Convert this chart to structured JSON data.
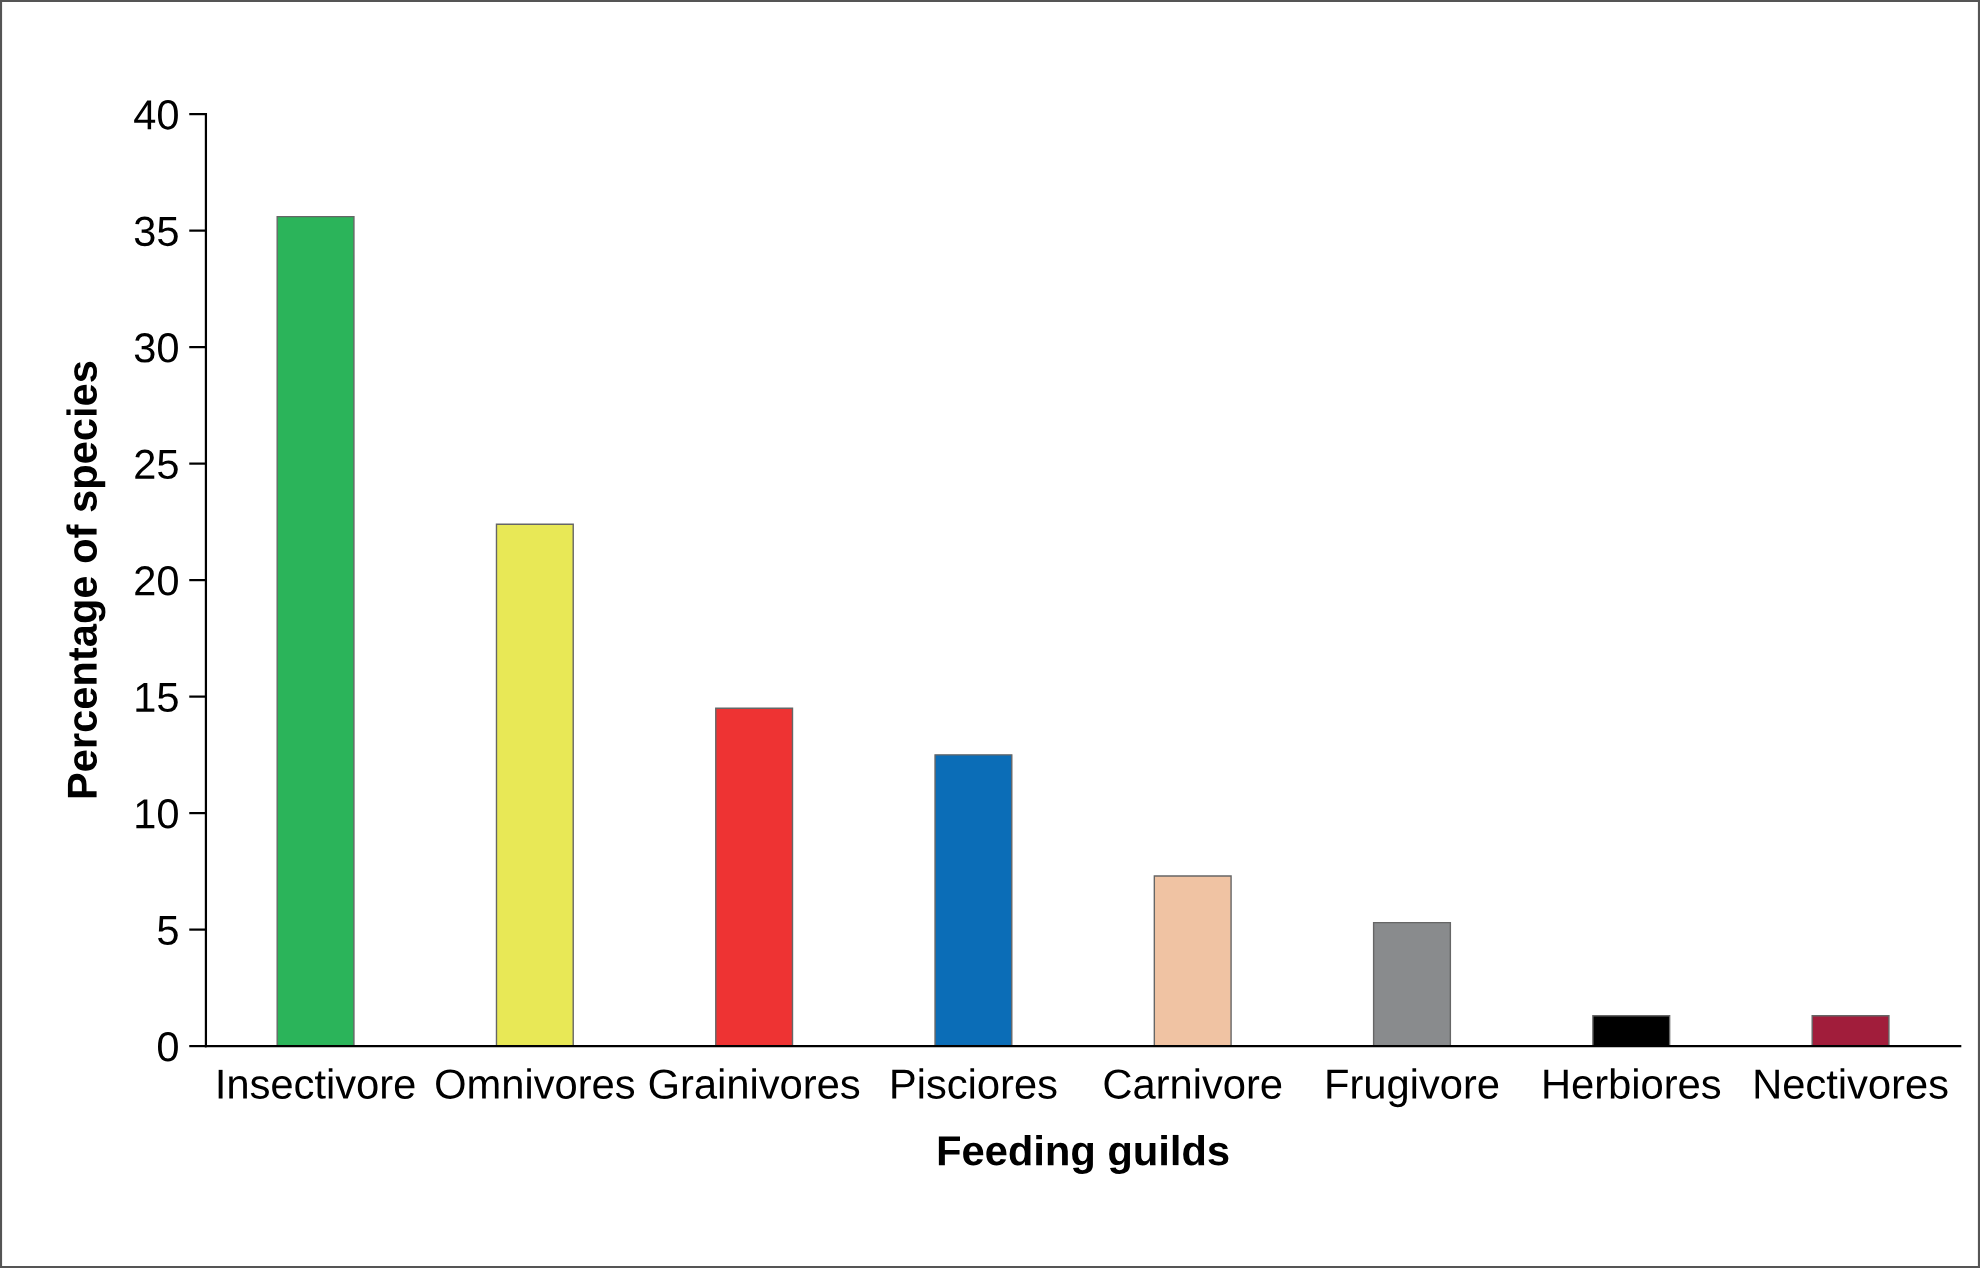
{
  "chart_data": {
    "type": "bar",
    "xlabel": "Feeding guilds",
    "ylabel": "Percentage of species",
    "categories": [
      "Insectivore",
      "Omnivores",
      "Grainivores",
      "Pisciores",
      "Carnivore",
      "Frugivore",
      "Herbiores",
      "Nectivores"
    ],
    "values": [
      35.6,
      22.4,
      14.5,
      12.5,
      7.3,
      5.3,
      1.3,
      1.3
    ],
    "colors": [
      "#2bb45a",
      "#e8e856",
      "#ee3333",
      "#0b6db7",
      "#f0c3a3",
      "#898b8d",
      "#000000",
      "#a11d3b"
    ],
    "ylim": [
      0,
      40
    ],
    "yticks": [
      0,
      5,
      10,
      15,
      20,
      25,
      30,
      35,
      40
    ],
    "grid": false,
    "legend": false
  }
}
